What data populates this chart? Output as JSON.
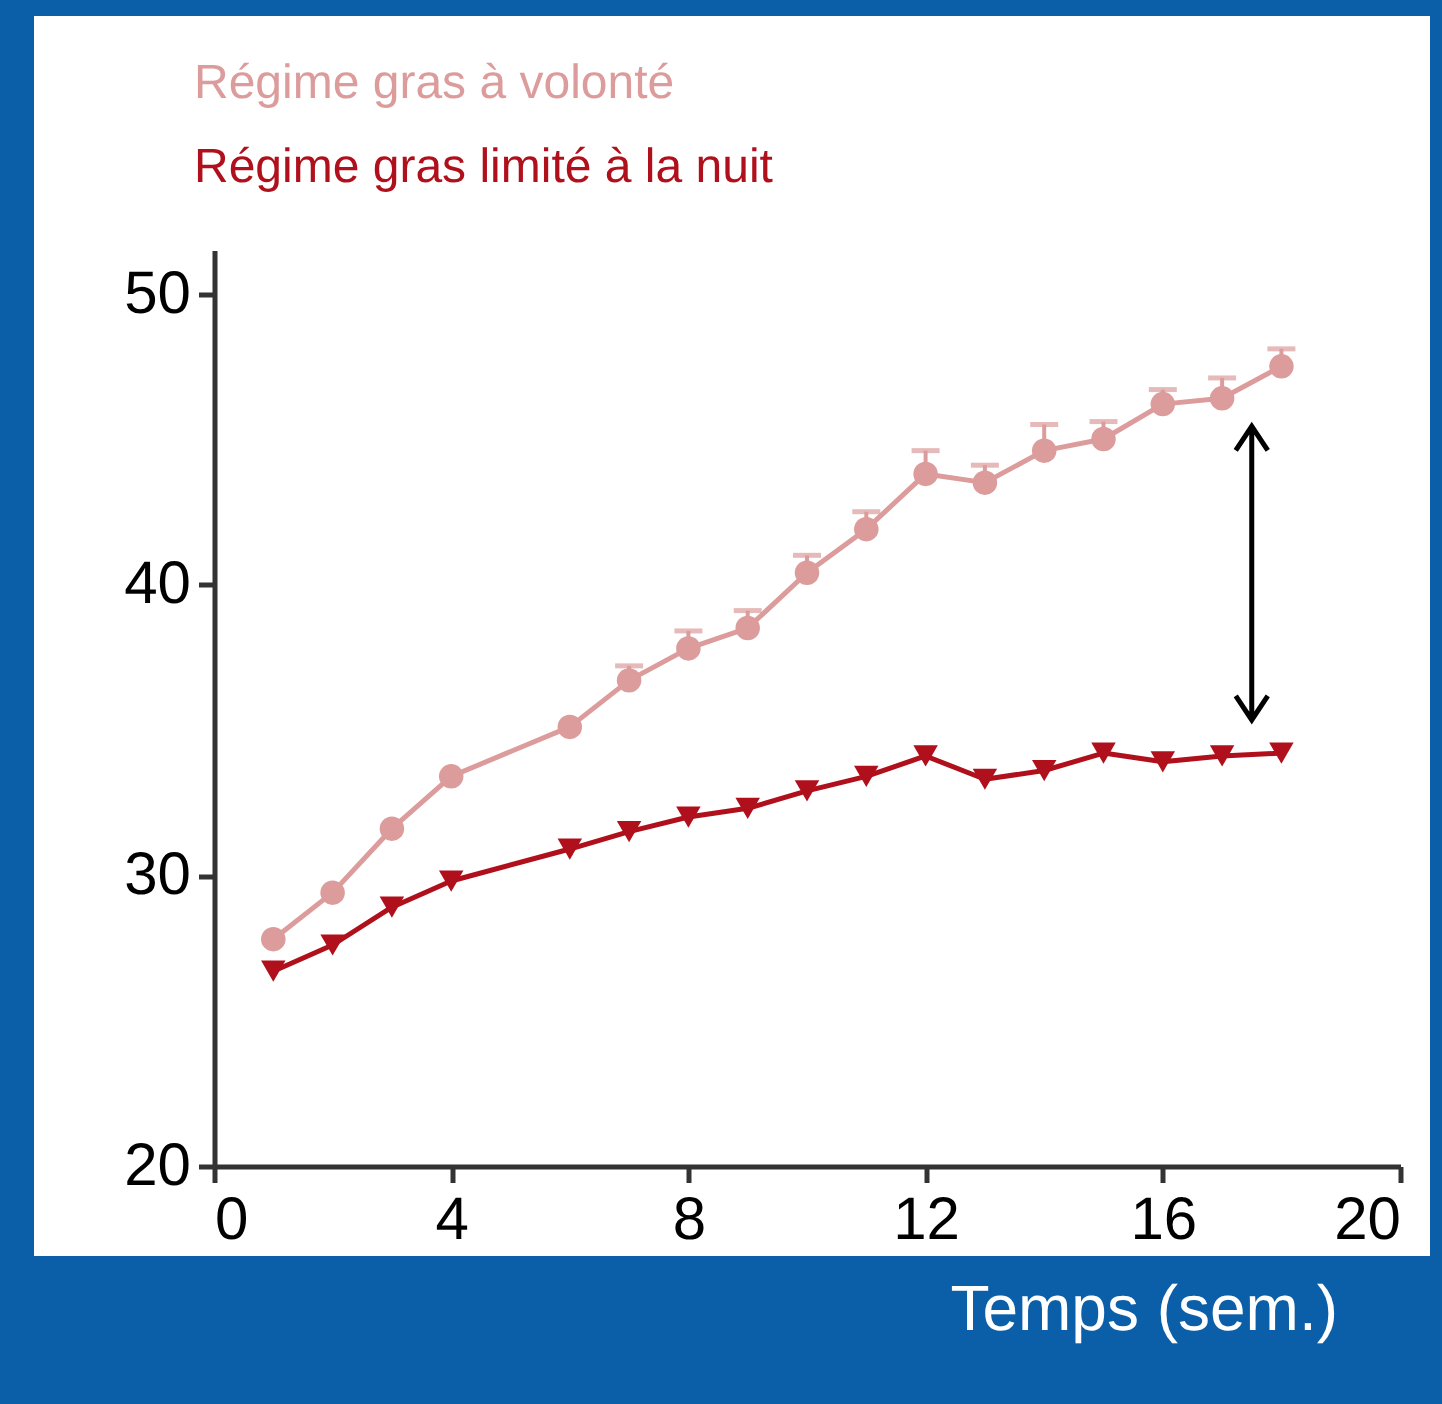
{
  "chart_data": {
    "type": "line",
    "xlabel": "Temps (sem.)",
    "x": [
      1,
      2,
      3,
      4,
      6,
      7,
      8,
      9,
      10,
      11,
      12,
      13,
      14,
      15,
      16,
      17,
      18
    ],
    "series": [
      {
        "name": "Régime gras à volonté",
        "color": "#dc9c9c",
        "marker": "circle",
        "values": [
          27.8,
          29.4,
          31.6,
          33.4,
          35.1,
          36.7,
          37.8,
          38.5,
          40.4,
          41.9,
          43.8,
          43.5,
          44.6,
          45.0,
          46.2,
          46.4,
          47.5
        ],
        "errors": [
          null,
          null,
          null,
          null,
          null,
          [
            36.7,
            37.2
          ],
          [
            37.8,
            38.4
          ],
          [
            38.5,
            39.1
          ],
          [
            40.4,
            41.0
          ],
          [
            41.9,
            42.5
          ],
          [
            43.8,
            44.6
          ],
          [
            43.5,
            44.1
          ],
          [
            44.6,
            45.5
          ],
          [
            45.0,
            45.6
          ],
          [
            46.2,
            46.7
          ],
          [
            46.4,
            47.1
          ],
          [
            47.5,
            48.1
          ]
        ]
      },
      {
        "name": "Régime gras limité à la nuit",
        "color": "#b0101c",
        "marker": "triangle",
        "values": [
          26.7,
          27.6,
          28.9,
          29.8,
          30.9,
          31.5,
          32.0,
          32.3,
          32.9,
          33.4,
          34.1,
          33.3,
          33.6,
          34.2,
          33.9,
          34.1,
          34.2
        ]
      }
    ],
    "xlim": [
      0,
      20
    ],
    "xticks": [
      0,
      4,
      8,
      12,
      16,
      20
    ],
    "ylim": [
      20,
      51.5
    ],
    "yticks": [
      20,
      30,
      40,
      50
    ],
    "legend": "top left",
    "grid": false,
    "line_style": "solid"
  }
}
